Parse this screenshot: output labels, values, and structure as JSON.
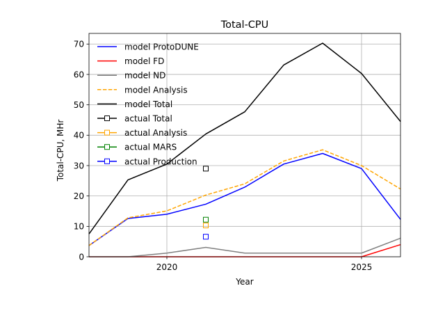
{
  "chart_data": {
    "type": "line",
    "title": "Total-CPU",
    "xlabel": "Year",
    "ylabel": "Total-CPU, MHr",
    "xlim": [
      2018,
      2026
    ],
    "ylim": [
      0,
      73.5
    ],
    "x_ticks": [
      2020,
      2025
    ],
    "y_ticks": [
      0,
      10,
      20,
      30,
      40,
      50,
      60,
      70
    ],
    "grid": true,
    "legend_position": "upper-left",
    "series": [
      {
        "name": "model ProtoDUNE",
        "color": "#0000ff",
        "style": "solid",
        "marker": "none",
        "x": [
          2018,
          2019,
          2020,
          2021,
          2022,
          2023,
          2024,
          2025,
          2026
        ],
        "y": [
          3.7,
          12.6,
          14.0,
          17.3,
          22.9,
          30.5,
          34.0,
          29.0,
          12.3
        ]
      },
      {
        "name": "model FD",
        "color": "#ff0000",
        "style": "solid",
        "marker": "none",
        "x": [
          2018,
          2019,
          2020,
          2021,
          2022,
          2023,
          2024,
          2025,
          2026
        ],
        "y": [
          0,
          0,
          0,
          0,
          0,
          0,
          0,
          0,
          4.0
        ]
      },
      {
        "name": "model ND",
        "color": "#808080",
        "style": "solid",
        "marker": "none",
        "x": [
          2018,
          2019,
          2020,
          2021,
          2022,
          2023,
          2024,
          2025,
          2026
        ],
        "y": [
          0,
          0,
          1.2,
          3.1,
          1.2,
          1.2,
          1.2,
          1.2,
          6.1
        ]
      },
      {
        "name": "model Analysis",
        "color": "#ffa500",
        "style": "dashed",
        "marker": "none",
        "x": [
          2018,
          2019,
          2020,
          2021,
          2022,
          2023,
          2024,
          2025,
          2026
        ],
        "y": [
          3.7,
          12.8,
          15.1,
          20.3,
          24.0,
          31.5,
          35.2,
          30.0,
          22.3
        ]
      },
      {
        "name": "model Total",
        "color": "#000000",
        "style": "solid",
        "marker": "none",
        "x": [
          2018,
          2019,
          2020,
          2021,
          2022,
          2023,
          2024,
          2025,
          2026
        ],
        "y": [
          7.5,
          25.3,
          30.5,
          40.4,
          47.7,
          63.1,
          70.3,
          60.3,
          44.5
        ]
      },
      {
        "name": "actual Total",
        "color": "#000000",
        "style": "solid",
        "marker": "square",
        "x": [
          2021
        ],
        "y": [
          29.0
        ]
      },
      {
        "name": "actual Analysis",
        "color": "#ffa500",
        "style": "solid",
        "marker": "square",
        "x": [
          2021
        ],
        "y": [
          10.3
        ]
      },
      {
        "name": "actual MARS",
        "color": "#008000",
        "style": "solid",
        "marker": "square",
        "x": [
          2021
        ],
        "y": [
          12.2
        ]
      },
      {
        "name": "actual Production",
        "color": "#0000ff",
        "style": "solid",
        "marker": "square",
        "x": [
          2021
        ],
        "y": [
          6.6
        ]
      }
    ]
  }
}
